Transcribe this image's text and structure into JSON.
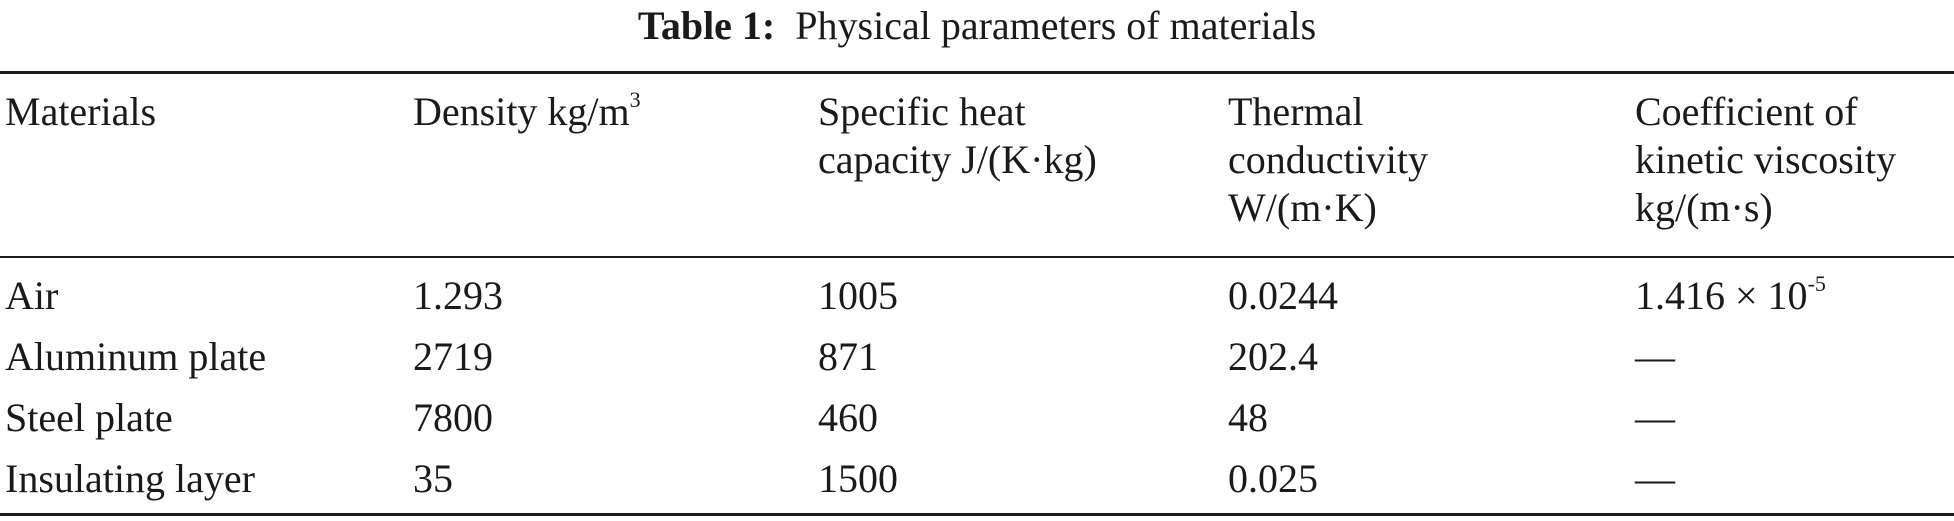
{
  "caption": {
    "label": "Table 1:",
    "text": "Physical parameters of materials"
  },
  "table": {
    "headers": [
      {
        "lines": [
          "Materials"
        ]
      },
      {
        "text": "Density kg/m",
        "sup": "3"
      },
      {
        "lines": [
          "Specific heat",
          "capacity J/(K·kg)"
        ]
      },
      {
        "lines": [
          "Thermal",
          "conductivity",
          "W/(m·K)"
        ]
      },
      {
        "lines": [
          "Coefficient of",
          "kinetic viscosity",
          "kg/(m·s)"
        ]
      }
    ],
    "rows": [
      {
        "material": "Air",
        "density": "1.293",
        "specific_heat": "1005",
        "conductivity": "0.0244",
        "viscosity_base": "1.416 × 10",
        "viscosity_exp": "-5"
      },
      {
        "material": "Aluminum plate",
        "density": "2719",
        "specific_heat": "871",
        "conductivity": "202.4",
        "viscosity_base": "—",
        "viscosity_exp": ""
      },
      {
        "material": "Steel plate",
        "density": "7800",
        "specific_heat": "460",
        "conductivity": "48",
        "viscosity_base": "—",
        "viscosity_exp": ""
      },
      {
        "material": "Insulating layer",
        "density": "35",
        "specific_heat": "1500",
        "conductivity": "0.025",
        "viscosity_base": "—",
        "viscosity_exp": ""
      }
    ]
  }
}
